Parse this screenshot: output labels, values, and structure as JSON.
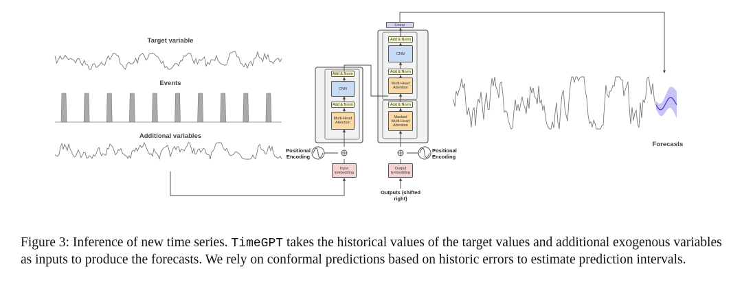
{
  "figure": {
    "series_labels": [
      "Target variable",
      "Events",
      "Additional variables"
    ],
    "encoder": {
      "blocks": [
        "Add & Norm",
        "CNN",
        "Add & Norm",
        "Multi-Head Attention"
      ],
      "positional_encoding": "Positional Encoding",
      "embedding": "Input Embedding"
    },
    "decoder": {
      "linear": "Linear",
      "blocks": [
        "Add & Norm",
        "CNN",
        "Add & Norm",
        "Multi-Head Attention",
        "Add & Norm",
        "Masked Multi-Head Attention"
      ],
      "positional_encoding": "Positional Encoding",
      "embedding": "Output Embedding",
      "outputs": "Outputs (shifted right)"
    },
    "forecast_label": "Forecasts"
  },
  "caption": {
    "parts": [
      "Figure 3: Inference of new time series. ",
      "TimeGPT",
      " takes the historical values of the target values and additional exogenous variables as inputs to produce the forecasts. We rely on conformal predictions based on historic errors to estimate prediction intervals."
    ]
  }
}
